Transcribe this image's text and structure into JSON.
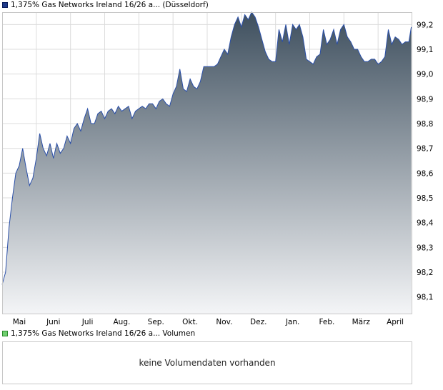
{
  "price_legend": "1,375% Gas Networks Ireland 16/26 a... (Düsseldorf)",
  "volume_legend": "1,375% Gas Networks Ireland 16/26 a... Volumen",
  "volume_message": "keine Volumendaten vorhanden",
  "colors": {
    "line": "#2a4fa8",
    "fill_top": "#3e4f5e",
    "fill_bottom": "#f4f5f7",
    "grid": "#dcdcdc",
    "frame": "#c8c8c8"
  },
  "chart_data": {
    "type": "area",
    "title": "",
    "xlabel": "",
    "ylabel": "",
    "ylim": [
      98.03,
      99.25
    ],
    "y_ticks": [
      98.1,
      98.2,
      98.3,
      98.4,
      98.5,
      98.6,
      98.7,
      98.8,
      98.9,
      99.0,
      99.1,
      99.2
    ],
    "y_tick_labels": [
      "98,1",
      "98,2",
      "98,3",
      "98,4",
      "98,5",
      "98,6",
      "98,7",
      "98,8",
      "98,9",
      "99,0",
      "99,1",
      "99,2"
    ],
    "x_labels": [
      "Mai",
      "Juni",
      "Juli",
      "Aug.",
      "Sep.",
      "Okt.",
      "Nov.",
      "Dez.",
      "Jan.",
      "Feb.",
      "März",
      "April"
    ],
    "x_label_positions": [
      0.5,
      1.5,
      2.5,
      3.5,
      4.5,
      5.5,
      6.5,
      7.5,
      8.5,
      9.5,
      10.5,
      11.5
    ],
    "x_range": [
      0,
      12
    ],
    "y_axis_side": "right",
    "grid": true,
    "series": [
      {
        "x": [
          0.0,
          0.1,
          0.2,
          0.3,
          0.4,
          0.5,
          0.6,
          0.7,
          0.8,
          0.9,
          1.0,
          1.1,
          1.2,
          1.3,
          1.4,
          1.5,
          1.6,
          1.7,
          1.8,
          1.9,
          2.0,
          2.1,
          2.2,
          2.3,
          2.4,
          2.5,
          2.6,
          2.7,
          2.8,
          2.9,
          3.0,
          3.1,
          3.2,
          3.3,
          3.4,
          3.5,
          3.6,
          3.7,
          3.8,
          3.9,
          4.0,
          4.1,
          4.2,
          4.3,
          4.4,
          4.5,
          4.6,
          4.7,
          4.8,
          4.9,
          5.0,
          5.1,
          5.2,
          5.3,
          5.4,
          5.5,
          5.6,
          5.7,
          5.8,
          5.9,
          6.0,
          6.1,
          6.2,
          6.3,
          6.4,
          6.5,
          6.6,
          6.7,
          6.8,
          6.9,
          7.0,
          7.1,
          7.2,
          7.3,
          7.4,
          7.5,
          7.6,
          7.7,
          7.8,
          7.9,
          8.0,
          8.1,
          8.2,
          8.3,
          8.4,
          8.5,
          8.6,
          8.7,
          8.8,
          8.9,
          9.0,
          9.1,
          9.2,
          9.3,
          9.4,
          9.5,
          9.6,
          9.7,
          9.8,
          9.9,
          10.0,
          10.1,
          10.2,
          10.3,
          10.4,
          10.5,
          10.6,
          10.7,
          10.8,
          10.9,
          11.0,
          11.1,
          11.2,
          11.3,
          11.4,
          11.5,
          11.6,
          11.7,
          11.8,
          11.9,
          11.97
        ],
        "values": [
          98.15,
          98.2,
          98.38,
          98.5,
          98.6,
          98.63,
          98.7,
          98.62,
          98.55,
          98.58,
          98.66,
          98.76,
          98.7,
          98.67,
          98.72,
          98.66,
          98.72,
          98.68,
          98.7,
          98.75,
          98.72,
          98.78,
          98.8,
          98.77,
          98.82,
          98.86,
          98.8,
          98.8,
          98.84,
          98.85,
          98.82,
          98.85,
          98.86,
          98.84,
          98.87,
          98.85,
          98.86,
          98.87,
          98.82,
          98.85,
          98.86,
          98.87,
          98.86,
          98.88,
          98.88,
          98.86,
          98.89,
          98.9,
          98.88,
          98.87,
          98.92,
          98.95,
          99.02,
          98.94,
          98.93,
          98.98,
          98.95,
          98.94,
          98.97,
          99.03,
          99.03,
          99.03,
          99.03,
          99.04,
          99.07,
          99.1,
          99.08,
          99.15,
          99.2,
          99.23,
          99.19,
          99.24,
          99.22,
          99.25,
          99.23,
          99.19,
          99.14,
          99.09,
          99.06,
          99.05,
          99.05,
          99.18,
          99.13,
          99.2,
          99.12,
          99.2,
          99.18,
          99.2,
          99.15,
          99.06,
          99.05,
          99.04,
          99.07,
          99.08,
          99.18,
          99.12,
          99.14,
          99.18,
          99.12,
          99.18,
          99.2,
          99.15,
          99.13,
          99.1,
          99.1,
          99.07,
          99.05,
          99.05,
          99.06,
          99.06,
          99.04,
          99.05,
          99.07,
          99.18,
          99.12,
          99.15,
          99.14,
          99.12,
          99.13,
          99.13,
          99.19
        ]
      }
    ]
  }
}
